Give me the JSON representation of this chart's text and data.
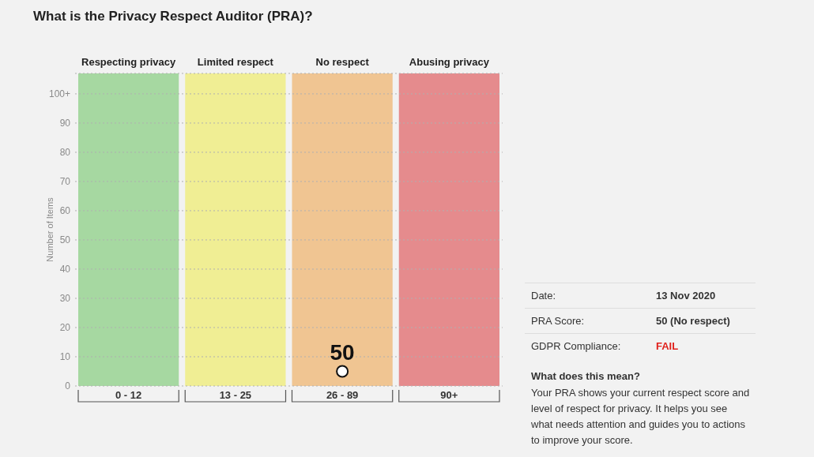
{
  "chart_data": [
    {
      "type": "scatter",
      "title": "What is the Privacy Respect Auditor (PRA)?",
      "ylabel": "Number of Items",
      "categories": [
        "0 - 12",
        "13 - 25",
        "26 - 89",
        "90+"
      ],
      "values": [
        null,
        null,
        5,
        null
      ],
      "color": "#ffffff",
      "marker": "circle",
      "ylim": [
        0,
        107
      ],
      "yticks": [
        0,
        10,
        20,
        30,
        40,
        50,
        60,
        70,
        80,
        90,
        {
          "value": 100,
          "label": "100+"
        }
      ],
      "grid": "y",
      "bands": [
        {
          "axis": "x",
          "from": "0 - 12",
          "to": "0 - 12",
          "label": "Respecting privacy",
          "color": "#a6d8a1"
        },
        {
          "axis": "x",
          "from": "13 - 25",
          "to": "13 - 25",
          "label": "Limited respect",
          "color": "#f0ee94"
        },
        {
          "axis": "x",
          "from": "26 - 89",
          "to": "26 - 89",
          "label": "No respect",
          "color": "#f0c592"
        },
        {
          "axis": "x",
          "from": "90+",
          "to": "90+",
          "label": "Abusing privacy",
          "color": "#e58b8d"
        }
      ],
      "annotations": [
        {
          "text": "50",
          "x": "26 - 89",
          "y": 5
        }
      ]
    },
    {
      "type": "other",
      "annotations": [
        "Date:",
        "13 Nov 2020",
        "PRA Score:",
        "50 (No respect)",
        "GDPR Compliance:",
        "FAIL",
        "What does this mean?",
        "Your PRA shows your current respect score and level of respect for privacy. It helps you see what needs attention and guides you to actions to improve your score."
      ]
    }
  ]
}
